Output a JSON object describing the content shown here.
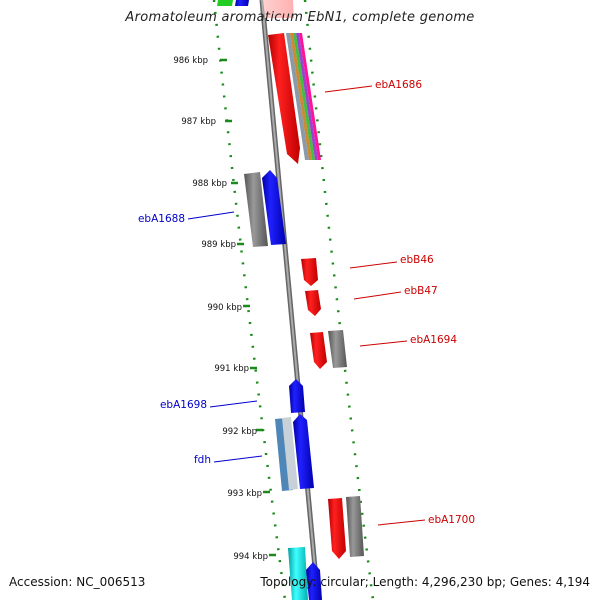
{
  "title": "Aromatoleum aromaticum EbN1, complete genome",
  "footer": {
    "accession": "Accession: NC_006513",
    "topology": "Topology: circular; Length: 4,296,230 bp; Genes: 4,194"
  },
  "colors": {
    "forward_label": "#cc0000",
    "reverse_label": "#0000cc",
    "tick": "#1a8a1a",
    "backbone": "#888888"
  },
  "kbp_ticks": [
    "986 kbp",
    "987 kbp",
    "988 kbp",
    "989 kbp",
    "990 kbp",
    "991 kbp",
    "992 kbp",
    "993 kbp",
    "994 kbp"
  ],
  "gene_labels": [
    {
      "text": "ebA1686",
      "strand": "forward"
    },
    {
      "text": "ebA1688",
      "strand": "reverse"
    },
    {
      "text": "ebB46",
      "strand": "forward"
    },
    {
      "text": "ebB47",
      "strand": "forward"
    },
    {
      "text": "ebA1694",
      "strand": "forward"
    },
    {
      "text": "ebA1698",
      "strand": "reverse"
    },
    {
      "text": "fdh",
      "strand": "reverse"
    },
    {
      "text": "ebA1700",
      "strand": "forward"
    }
  ]
}
